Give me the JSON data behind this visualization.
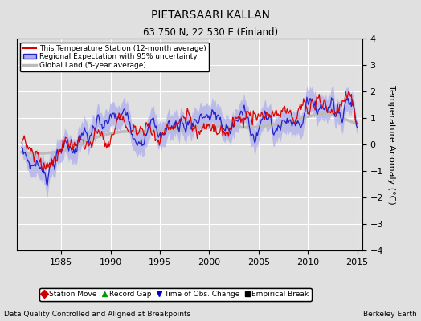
{
  "title": "PIETARSAARI KALLAN",
  "subtitle": "63.750 N, 22.530 E (Finland)",
  "xlabel_left": "Data Quality Controlled and Aligned at Breakpoints",
  "xlabel_right": "Berkeley Earth",
  "ylabel": "Temperature Anomaly (°C)",
  "xlim": [
    1980.5,
    2015.5
  ],
  "ylim": [
    -4,
    4
  ],
  "yticks": [
    -4,
    -3,
    -2,
    -1,
    0,
    1,
    2,
    3,
    4
  ],
  "xticks": [
    1985,
    1990,
    1995,
    2000,
    2005,
    2010,
    2015
  ],
  "background_color": "#e0e0e0",
  "plot_bg_color": "#e0e0e0",
  "grid_color": "#ffffff",
  "station_color": "#dd0000",
  "regional_color": "#2222cc",
  "regional_fill_color": "#aaaaee",
  "global_color": "#bbbbbb",
  "legend_items": [
    {
      "label": "This Temperature Station (12-month average)",
      "color": "#dd0000",
      "lw": 1.2
    },
    {
      "label": "Regional Expectation with 95% uncertainty",
      "color": "#2222cc",
      "lw": 1.2
    },
    {
      "label": "Global Land (5-year average)",
      "color": "#bbbbbb",
      "lw": 2.0
    }
  ],
  "bottom_legend": [
    {
      "label": "Station Move",
      "marker": "D",
      "color": "#cc0000"
    },
    {
      "label": "Record Gap",
      "marker": "^",
      "color": "#009900"
    },
    {
      "label": "Time of Obs. Change",
      "marker": "v",
      "color": "#0000cc"
    },
    {
      "label": "Empirical Break",
      "marker": "s",
      "color": "#000000"
    }
  ]
}
